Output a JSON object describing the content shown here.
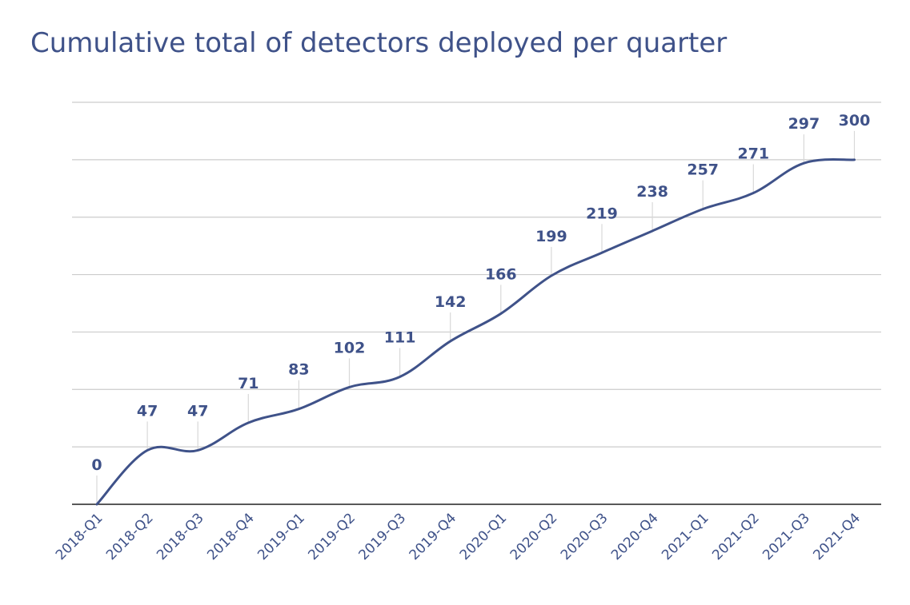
{
  "chart_data": {
    "type": "line",
    "title": "Cumulative total of detectors deployed per quarter",
    "xlabel": "",
    "ylabel": "",
    "categories": [
      "2018-Q1",
      "2018-Q2",
      "2018-Q3",
      "2018-Q4",
      "2019-Q1",
      "2019-Q2",
      "2019-Q3",
      "2019-Q4",
      "2020-Q1",
      "2020-Q2",
      "2020-Q3",
      "2020-Q4",
      "2021-Q1",
      "2021-Q2",
      "2021-Q3",
      "2021-Q4"
    ],
    "series": [
      {
        "values": [
          0,
          47,
          47,
          71,
          83,
          102,
          111,
          142,
          166,
          199,
          219,
          238,
          257,
          271,
          297,
          300
        ]
      }
    ],
    "ylim": [
      0,
      350
    ],
    "grid": true,
    "data_labels": true,
    "line_color": "#3f5289"
  }
}
